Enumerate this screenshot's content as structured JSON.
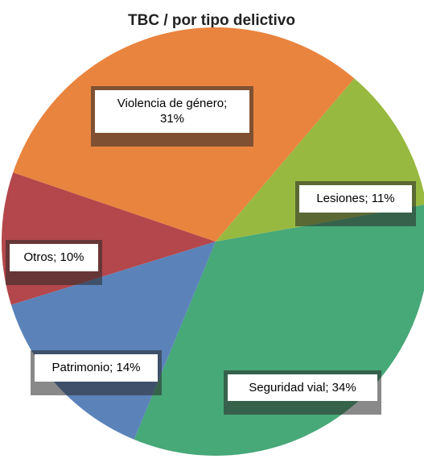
{
  "chart_data": {
    "type": "pie",
    "title": "TBC / por tipo delictivo",
    "categories": [
      "Seguridad vial",
      "Patrimonio",
      "Otros",
      "Violencia de género",
      "Lesiones"
    ],
    "values": [
      34,
      14,
      10,
      31,
      11
    ],
    "value_labels": [
      "Seguridad vial; 34%",
      "Patrimonio; 14%",
      "Otros; 10%",
      "Violencia de género;\n31%",
      "Lesiones; 11%"
    ],
    "colors": [
      "#47a878",
      "#5b83ba",
      "#b3474b",
      "#e9843f",
      "#97b940"
    ]
  }
}
